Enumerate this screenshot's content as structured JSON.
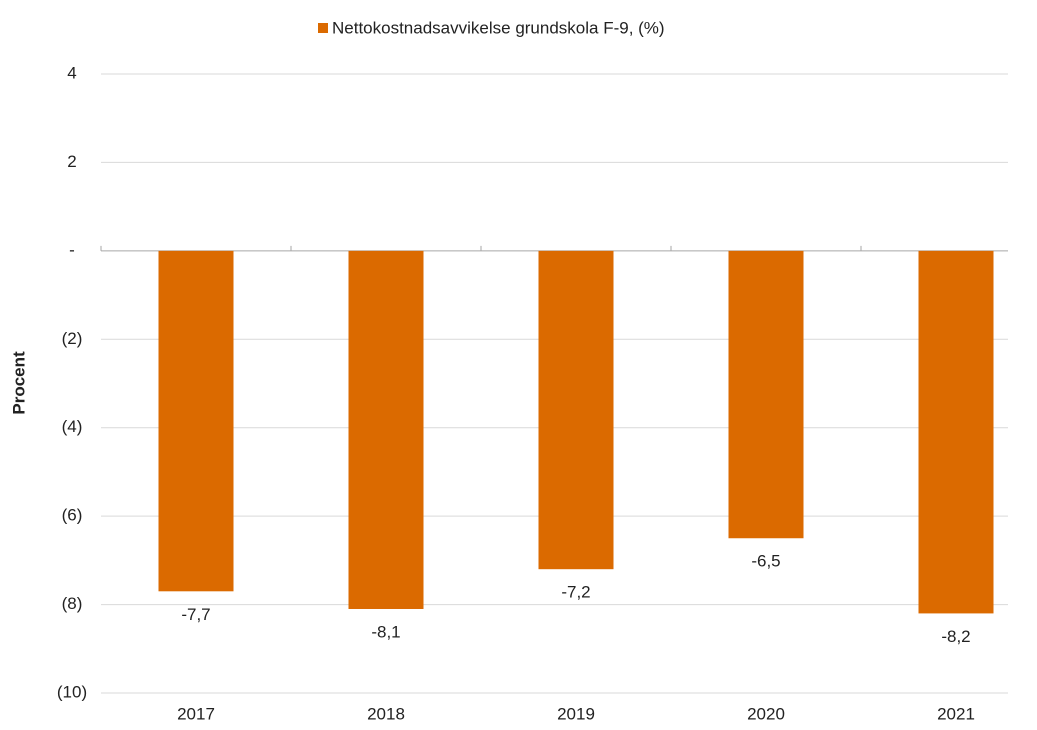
{
  "chart_data": {
    "type": "bar",
    "legend": "Nettokostnadsavvikelse grundskola F-9, (%)",
    "y_axis_label": "Procent",
    "categories": [
      "2017",
      "2018",
      "2019",
      "2020",
      "2021"
    ],
    "values": [
      -7.7,
      -8.1,
      -7.2,
      -6.5,
      -8.2
    ],
    "value_labels": [
      "-7,7",
      "-8,1",
      "-7,2",
      "-6,5",
      "-8,2"
    ],
    "color": "#db6a00",
    "ylim": [
      -10,
      4
    ],
    "yticks": [
      {
        "value": -10,
        "label": "(10)"
      },
      {
        "value": -8,
        "label": "(8)"
      },
      {
        "value": -6,
        "label": "(6)"
      },
      {
        "value": -4,
        "label": "(4)"
      },
      {
        "value": -2,
        "label": "(2)"
      },
      {
        "value": 0,
        "label": "-"
      },
      2,
      4
    ],
    "grid": true
  }
}
